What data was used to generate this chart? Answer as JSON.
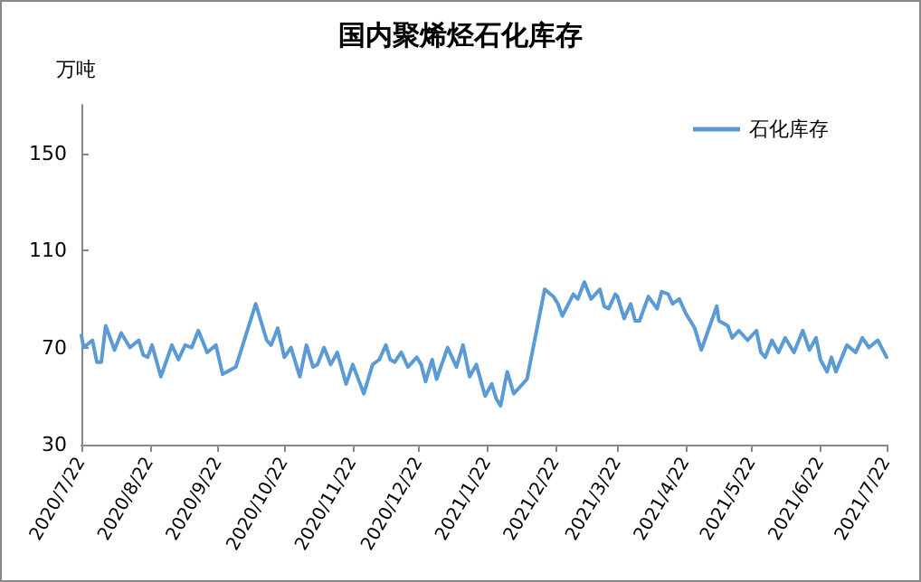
{
  "chart_data": {
    "type": "line",
    "title": "国内聚烯烃石化库存",
    "ylabel": "万吨",
    "x": [
      "2020-07-22",
      "2020-07-23",
      "2020-07-27",
      "2020-07-29",
      "2020-07-31",
      "2020-08-02",
      "2020-08-06",
      "2020-08-09",
      "2020-08-13",
      "2020-08-17",
      "2020-08-19",
      "2020-08-21",
      "2020-08-23",
      "2020-08-27",
      "2020-09-01",
      "2020-09-04",
      "2020-09-07",
      "2020-09-10",
      "2020-09-13",
      "2020-09-17",
      "2020-09-21",
      "2020-09-24",
      "2020-09-30",
      "2020-10-09",
      "2020-10-14",
      "2020-10-16",
      "2020-10-19",
      "2020-10-22",
      "2020-10-25",
      "2020-10-29",
      "2020-11-01",
      "2020-11-04",
      "2020-11-06",
      "2020-11-09",
      "2020-11-12",
      "2020-11-15",
      "2020-11-19",
      "2020-11-22",
      "2020-11-27",
      "2020-12-01",
      "2020-12-04",
      "2020-12-07",
      "2020-12-09",
      "2020-12-11",
      "2020-12-14",
      "2020-12-17",
      "2020-12-21",
      "2020-12-23",
      "2020-12-25",
      "2020-12-28",
      "2020-12-30",
      "2021-01-04",
      "2021-01-08",
      "2021-01-11",
      "2021-01-14",
      "2021-01-17",
      "2021-01-21",
      "2021-01-24",
      "2021-01-26",
      "2021-01-28",
      "2021-01-31",
      "2021-02-03",
      "2021-02-09",
      "2021-02-17",
      "2021-02-21",
      "2021-02-23",
      "2021-02-25",
      "2021-03-02",
      "2021-03-04",
      "2021-03-07",
      "2021-03-10",
      "2021-03-14",
      "2021-03-16",
      "2021-03-18",
      "2021-03-21",
      "2021-03-22",
      "2021-03-25",
      "2021-03-28",
      "2021-03-30",
      "2021-04-01",
      "2021-04-05",
      "2021-04-09",
      "2021-04-11",
      "2021-04-14",
      "2021-04-16",
      "2021-04-19",
      "2021-04-22",
      "2021-04-26",
      "2021-04-29",
      "2021-05-06",
      "2021-05-07",
      "2021-05-11",
      "2021-05-13",
      "2021-05-16",
      "2021-05-20",
      "2021-05-24",
      "2021-05-26",
      "2021-05-28",
      "2021-05-31",
      "2021-06-03",
      "2021-06-06",
      "2021-06-10",
      "2021-06-14",
      "2021-06-17",
      "2021-06-20",
      "2021-06-22",
      "2021-06-25",
      "2021-06-27",
      "2021-06-29",
      "2021-07-04",
      "2021-07-08",
      "2021-07-11",
      "2021-07-14",
      "2021-07-18",
      "2021-07-22"
    ],
    "series": [
      {
        "name": "石化库存",
        "color": "#5b9bd5",
        "values": [
          75,
          70,
          73,
          64,
          64,
          79,
          69,
          76,
          70,
          73,
          67,
          66,
          71,
          58,
          71,
          65,
          71,
          70,
          77,
          68,
          71,
          59,
          62,
          88,
          73,
          71,
          78,
          66,
          70,
          58,
          71,
          62,
          63,
          70,
          63,
          68,
          55,
          63,
          51,
          63,
          65,
          71,
          65,
          64,
          68,
          62,
          66,
          63,
          56,
          65,
          57,
          70,
          62,
          71,
          58,
          63,
          50,
          55,
          49,
          46,
          60,
          51,
          57,
          94,
          91,
          88,
          83,
          92,
          90,
          97,
          90,
          94,
          87,
          86,
          92,
          91,
          82,
          88,
          81,
          81,
          91,
          86,
          93,
          92,
          88,
          90,
          84,
          78,
          69,
          87,
          81,
          79,
          74,
          77,
          73,
          77,
          68,
          66,
          73,
          68,
          74,
          68,
          77,
          69,
          74,
          65,
          60,
          66,
          60,
          71,
          68,
          74,
          70,
          73,
          66
        ]
      }
    ],
    "xlim": [
      "2020-07-22",
      "2021-07-22"
    ],
    "xticks": [
      {
        "value": "2020-07-22",
        "label": "2020/7/22"
      },
      {
        "value": "2020-08-22",
        "label": "2020/8/22"
      },
      {
        "value": "2020-09-22",
        "label": "2020/9/22"
      },
      {
        "value": "2020-10-22",
        "label": "2020/10/22"
      },
      {
        "value": "2020-11-22",
        "label": "2020/11/22"
      },
      {
        "value": "2020-12-22",
        "label": "2020/12/22"
      },
      {
        "value": "2021-01-22",
        "label": "2021/1/22"
      },
      {
        "value": "2021-02-22",
        "label": "2021/2/22"
      },
      {
        "value": "2021-03-22",
        "label": "2021/3/22"
      },
      {
        "value": "2021-04-22",
        "label": "2021/4/22"
      },
      {
        "value": "2021-05-22",
        "label": "2021/5/22"
      },
      {
        "value": "2021-06-22",
        "label": "2021/6/22"
      },
      {
        "value": "2021-07-22",
        "label": "2021/7/22"
      }
    ],
    "ylim": [
      30,
      170
    ],
    "yticks": [
      30,
      70,
      110,
      150
    ],
    "grid": false,
    "legend": "top right",
    "marker": "none",
    "line_style": "solid"
  }
}
